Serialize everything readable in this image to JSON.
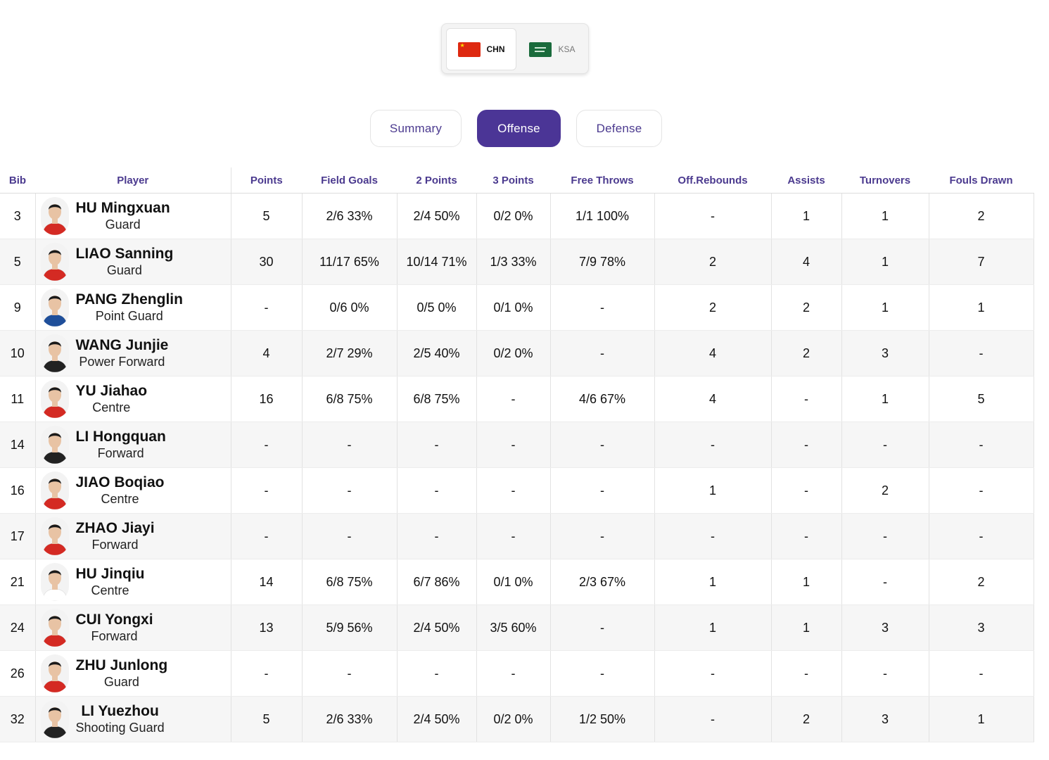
{
  "teams": {
    "home": {
      "code": "CHN",
      "flag_icon": "china-flag-icon"
    },
    "away": {
      "code": "KSA",
      "flag_icon": "saudi-arabia-flag-icon"
    }
  },
  "tabs": [
    {
      "label": "Summary"
    },
    {
      "label": "Offense",
      "active": true
    },
    {
      "label": "Defense"
    }
  ],
  "table": {
    "headers": {
      "bib": "Bib",
      "player": "Player",
      "points": "Points",
      "field_goals": "Field Goals",
      "two_points": "2 Points",
      "three_points": "3 Points",
      "free_throws": "Free Throws",
      "off_rebounds": "Off.Rebounds",
      "assists": "Assists",
      "turnovers": "Turnovers",
      "fouls_drawn": "Fouls Drawn"
    },
    "rows": [
      {
        "bib": "3",
        "name": "HU Mingxuan",
        "position": "Guard",
        "points": "5",
        "field_goals": "2/6 33%",
        "two_points": "2/4 50%",
        "three_points": "0/2 0%",
        "free_throws": "1/1 100%",
        "off_rebounds": "-",
        "assists": "1",
        "turnovers": "1",
        "fouls_drawn": "2"
      },
      {
        "bib": "5",
        "name": "LIAO Sanning",
        "position": "Guard",
        "points": "30",
        "field_goals": "11/17 65%",
        "two_points": "10/14 71%",
        "three_points": "1/3 33%",
        "free_throws": "7/9 78%",
        "off_rebounds": "2",
        "assists": "4",
        "turnovers": "1",
        "fouls_drawn": "7"
      },
      {
        "bib": "9",
        "name": "PANG Zhenglin",
        "position": "Point Guard",
        "points": "-",
        "field_goals": "0/6 0%",
        "two_points": "0/5 0%",
        "three_points": "0/1 0%",
        "free_throws": "-",
        "off_rebounds": "2",
        "assists": "2",
        "turnovers": "1",
        "fouls_drawn": "1"
      },
      {
        "bib": "10",
        "name": "WANG Junjie",
        "position": "Power Forward",
        "points": "4",
        "field_goals": "2/7 29%",
        "two_points": "2/5 40%",
        "three_points": "0/2 0%",
        "free_throws": "-",
        "off_rebounds": "4",
        "assists": "2",
        "turnovers": "3",
        "fouls_drawn": "-"
      },
      {
        "bib": "11",
        "name": "YU Jiahao",
        "position": "Centre",
        "points": "16",
        "field_goals": "6/8 75%",
        "two_points": "6/8 75%",
        "three_points": "-",
        "free_throws": "4/6 67%",
        "off_rebounds": "4",
        "assists": "-",
        "turnovers": "1",
        "fouls_drawn": "5"
      },
      {
        "bib": "14",
        "name": "LI Hongquan",
        "position": "Forward",
        "points": "-",
        "field_goals": "-",
        "two_points": "-",
        "three_points": "-",
        "free_throws": "-",
        "off_rebounds": "-",
        "assists": "-",
        "turnovers": "-",
        "fouls_drawn": "-"
      },
      {
        "bib": "16",
        "name": "JIAO Boqiao",
        "position": "Centre",
        "points": "-",
        "field_goals": "-",
        "two_points": "-",
        "three_points": "-",
        "free_throws": "-",
        "off_rebounds": "1",
        "assists": "-",
        "turnovers": "2",
        "fouls_drawn": "-"
      },
      {
        "bib": "17",
        "name": "ZHAO Jiayi",
        "position": "Forward",
        "points": "-",
        "field_goals": "-",
        "two_points": "-",
        "three_points": "-",
        "free_throws": "-",
        "off_rebounds": "-",
        "assists": "-",
        "turnovers": "-",
        "fouls_drawn": "-"
      },
      {
        "bib": "21",
        "name": "HU Jinqiu",
        "position": "Centre",
        "points": "14",
        "field_goals": "6/8 75%",
        "two_points": "6/7 86%",
        "three_points": "0/1 0%",
        "free_throws": "2/3 67%",
        "off_rebounds": "1",
        "assists": "1",
        "turnovers": "-",
        "fouls_drawn": "2"
      },
      {
        "bib": "24",
        "name": "CUI Yongxi",
        "position": "Forward",
        "points": "13",
        "field_goals": "5/9 56%",
        "two_points": "2/4 50%",
        "three_points": "3/5 60%",
        "free_throws": "-",
        "off_rebounds": "1",
        "assists": "1",
        "turnovers": "3",
        "fouls_drawn": "3"
      },
      {
        "bib": "26",
        "name": "ZHU Junlong",
        "position": "Guard",
        "points": "-",
        "field_goals": "-",
        "two_points": "-",
        "three_points": "-",
        "free_throws": "-",
        "off_rebounds": "-",
        "assists": "-",
        "turnovers": "-",
        "fouls_drawn": "-"
      },
      {
        "bib": "32",
        "name": "LI Yuezhou",
        "position": "Shooting Guard",
        "points": "5",
        "field_goals": "2/6 33%",
        "two_points": "2/4 50%",
        "three_points": "0/2 0%",
        "free_throws": "1/2 50%",
        "off_rebounds": "-",
        "assists": "2",
        "turnovers": "3",
        "fouls_drawn": "1"
      }
    ]
  },
  "colors": {
    "accent": "#4b3596",
    "header_text": "#4b3a8f",
    "row_alt": "#f6f6f6"
  }
}
